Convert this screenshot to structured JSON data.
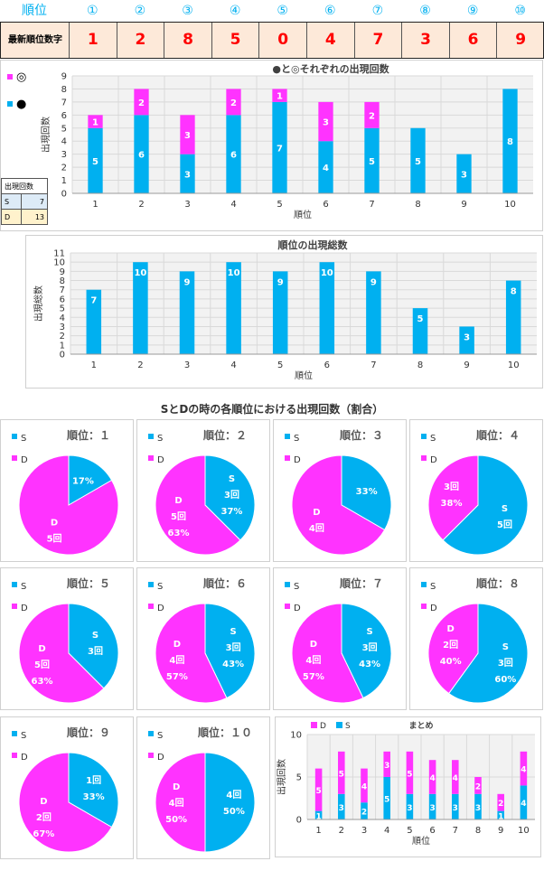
{
  "header": {
    "rank_label": "順位",
    "ranks": [
      "①",
      "②",
      "③",
      "④",
      "⑤",
      "⑥",
      "⑦",
      "⑧",
      "⑨",
      "⑩"
    ],
    "latest_label": "最新順位数字",
    "latest_digits": [
      "1",
      "2",
      "8",
      "5",
      "0",
      "4",
      "7",
      "3",
      "6",
      "9"
    ]
  },
  "left_legend": {
    "items": [
      {
        "symbol": "◎",
        "color": "#ff33ff",
        "icon": "magenta-square-icon"
      },
      {
        "symbol": "●",
        "color": "#00b0f0",
        "icon": "cyan-square-icon"
      }
    ]
  },
  "count_table": {
    "header": "出現回数",
    "rows": [
      {
        "label": "S",
        "value": "7"
      },
      {
        "label": "D",
        "value": "13"
      }
    ]
  },
  "section_title": "SとDの時の各順位における出現回数（割合）",
  "colors": {
    "cyan": "#00b0f0",
    "magenta": "#ff33ff",
    "grid": "#d9d9d9",
    "plot_bg": "#f2f2f2"
  },
  "chart_data": [
    {
      "type": "bar",
      "stacked": true,
      "title": "●と◎それぞれの出現回数",
      "xlabel": "順位",
      "ylabel": "出現回数",
      "categories": [
        "1",
        "2",
        "3",
        "4",
        "5",
        "6",
        "7",
        "8",
        "9",
        "10"
      ],
      "ylim": [
        0,
        9
      ],
      "yticks": [
        0,
        1,
        2,
        3,
        4,
        5,
        6,
        7,
        8,
        9
      ],
      "series": [
        {
          "name": "●",
          "color": "#00b0f0",
          "values": [
            5,
            6,
            3,
            6,
            7,
            4,
            5,
            5,
            3,
            8
          ]
        },
        {
          "name": "◎",
          "color": "#ff33ff",
          "values": [
            1,
            2,
            3,
            2,
            1,
            3,
            2,
            0,
            0,
            0
          ]
        }
      ],
      "grid": true
    },
    {
      "type": "bar",
      "title": "順位の出現総数",
      "xlabel": "順位",
      "ylabel": "出現総数",
      "categories": [
        "1",
        "2",
        "3",
        "4",
        "5",
        "6",
        "7",
        "8",
        "9",
        "10"
      ],
      "ylim": [
        0,
        11
      ],
      "yticks": [
        0,
        1,
        2,
        3,
        4,
        5,
        6,
        7,
        8,
        9,
        10,
        11
      ],
      "values": [
        7,
        10,
        9,
        10,
        9,
        10,
        9,
        5,
        3,
        8
      ],
      "color": "#00b0f0",
      "grid": true
    },
    {
      "type": "pie",
      "title": "順位：１",
      "legend": [
        "S",
        "D"
      ],
      "slices": [
        {
          "name": "S",
          "value": 1,
          "labels": [
            "17%"
          ]
        },
        {
          "name": "D",
          "value": 5,
          "labels": [
            "D",
            "5回"
          ]
        }
      ]
    },
    {
      "type": "pie",
      "title": "順位：２",
      "legend": [
        "S",
        "D"
      ],
      "slices": [
        {
          "name": "S",
          "value": 3,
          "labels": [
            "S",
            "3回",
            "37%"
          ]
        },
        {
          "name": "D",
          "value": 5,
          "labels": [
            "D",
            "5回",
            "63%"
          ]
        }
      ]
    },
    {
      "type": "pie",
      "title": "順位：３",
      "legend": [
        "S",
        "D"
      ],
      "slices": [
        {
          "name": "S",
          "value": 2,
          "labels": [
            "33%"
          ]
        },
        {
          "name": "D",
          "value": 4,
          "labels": [
            "D",
            "4回"
          ]
        }
      ]
    },
    {
      "type": "pie",
      "title": "順位：４",
      "legend": [
        "S",
        "D"
      ],
      "slices": [
        {
          "name": "S",
          "value": 5,
          "labels": [
            "S",
            "5回"
          ]
        },
        {
          "name": "D",
          "value": 3,
          "labels": [
            "3回",
            "38%"
          ]
        }
      ]
    },
    {
      "type": "pie",
      "title": "順位：５",
      "legend": [
        "S",
        "D"
      ],
      "slices": [
        {
          "name": "S",
          "value": 3,
          "labels": [
            "S",
            "3回"
          ]
        },
        {
          "name": "D",
          "value": 5,
          "labels": [
            "D",
            "5回",
            "63%"
          ]
        }
      ]
    },
    {
      "type": "pie",
      "title": "順位：６",
      "legend": [
        "S",
        "D"
      ],
      "slices": [
        {
          "name": "S",
          "value": 3,
          "labels": [
            "S",
            "3回",
            "43%"
          ]
        },
        {
          "name": "D",
          "value": 4,
          "labels": [
            "D",
            "4回",
            "57%"
          ]
        }
      ]
    },
    {
      "type": "pie",
      "title": "順位：７",
      "legend": [
        "S",
        "D"
      ],
      "slices": [
        {
          "name": "S",
          "value": 3,
          "labels": [
            "S",
            "3回",
            "43%"
          ]
        },
        {
          "name": "D",
          "value": 4,
          "labels": [
            "D",
            "4回",
            "57%"
          ]
        }
      ]
    },
    {
      "type": "pie",
      "title": "順位：８",
      "legend": [
        "S",
        "D"
      ],
      "slices": [
        {
          "name": "S",
          "value": 3,
          "labels": [
            "S",
            "3回",
            "60%"
          ]
        },
        {
          "name": "D",
          "value": 2,
          "labels": [
            "D",
            "2回",
            "40%"
          ]
        }
      ]
    },
    {
      "type": "pie",
      "title": "順位：９",
      "legend": [
        "S",
        "D"
      ],
      "slices": [
        {
          "name": "S",
          "value": 1,
          "labels": [
            "1回",
            "33%"
          ]
        },
        {
          "name": "D",
          "value": 2,
          "labels": [
            "D",
            "2回",
            "67%"
          ]
        }
      ]
    },
    {
      "type": "pie",
      "title": "順位：１０",
      "legend": [
        "S",
        "D"
      ],
      "slices": [
        {
          "name": "S",
          "value": 4,
          "labels": [
            "4回",
            "50%"
          ]
        },
        {
          "name": "D",
          "value": 4,
          "labels": [
            "D",
            "4回",
            "50%"
          ]
        }
      ]
    },
    {
      "type": "bar",
      "stacked": true,
      "title": "まとめ",
      "xlabel": "順位",
      "ylabel": "出現回数",
      "categories": [
        "1",
        "2",
        "3",
        "4",
        "5",
        "6",
        "7",
        "8",
        "9",
        "10"
      ],
      "ylim": [
        0,
        10
      ],
      "yticks": [
        0,
        5,
        10
      ],
      "legend": [
        "D",
        "S"
      ],
      "series": [
        {
          "name": "S",
          "color": "#00b0f0",
          "values": [
            1,
            3,
            2,
            5,
            3,
            3,
            3,
            3,
            1,
            4
          ]
        },
        {
          "name": "D",
          "color": "#ff33ff",
          "values": [
            5,
            5,
            4,
            3,
            5,
            4,
            4,
            2,
            2,
            4
          ]
        }
      ],
      "grid": true
    }
  ]
}
